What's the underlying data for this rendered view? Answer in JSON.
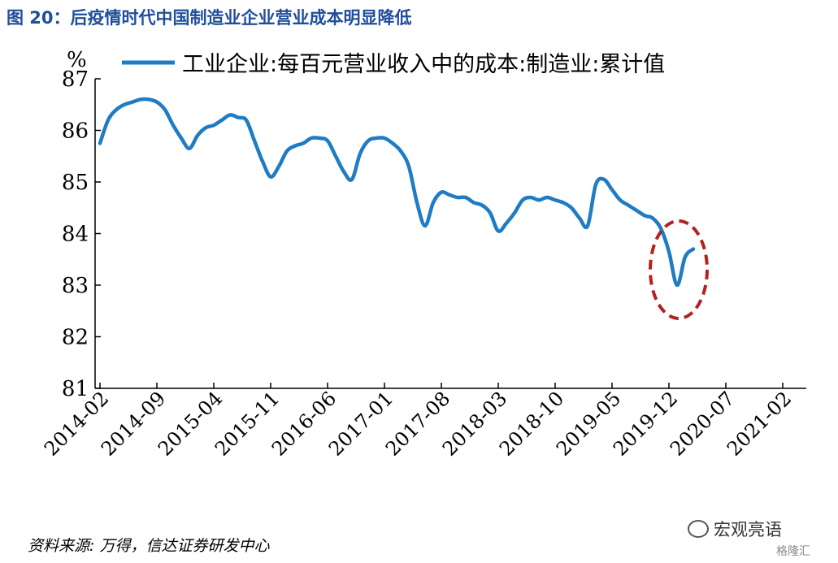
{
  "figure_title": "图  20：后疫情时代中国制造业企业营业成本明显降低",
  "source_note": "资料来源: 万得，信达证券研发中心",
  "watermark": {
    "brand": "宏观亮语",
    "corner": "格隆汇"
  },
  "colors": {
    "series": "#1f7cc4",
    "highlight": "#b22222",
    "title": "#1f4e9c"
  },
  "chart_data": {
    "type": "line",
    "ylabel": "%",
    "ylim": [
      81,
      87
    ],
    "yticks": [
      "81",
      "82",
      "83",
      "84",
      "85",
      "86",
      "87"
    ],
    "xtick_labels": [
      "2014-02",
      "2014-09",
      "2015-04",
      "2015-11",
      "2016-06",
      "2017-01",
      "2017-08",
      "2018-03",
      "2018-10",
      "2019-05",
      "2019-12",
      "2020-07",
      "2021-02"
    ],
    "legend_position": "top",
    "grid": false,
    "series": [
      {
        "name": "工业企业:每百元营业收入中的成本:制造业:累计值",
        "x_start": "2014-02",
        "frequency": "monthly",
        "values": [
          85.75,
          86.2,
          86.4,
          86.5,
          86.55,
          86.6,
          86.6,
          86.55,
          86.4,
          86.1,
          85.85,
          85.65,
          85.9,
          86.05,
          86.1,
          86.2,
          86.3,
          86.25,
          86.2,
          85.8,
          85.4,
          85.1,
          85.3,
          85.6,
          85.7,
          85.75,
          85.85,
          85.85,
          85.8,
          85.5,
          85.2,
          85.05,
          85.55,
          85.8,
          85.85,
          85.85,
          85.75,
          85.6,
          85.3,
          84.6,
          84.15,
          84.6,
          84.8,
          84.75,
          84.7,
          84.7,
          84.6,
          84.55,
          84.4,
          84.05,
          84.2,
          84.4,
          84.65,
          84.7,
          84.65,
          84.7,
          84.65,
          84.6,
          84.5,
          84.3,
          84.15,
          84.95,
          85.05,
          84.85,
          84.65,
          84.55,
          84.45,
          84.35,
          84.3,
          84.1,
          83.65,
          83.0,
          83.55,
          83.7
        ]
      }
    ],
    "annotations": [
      {
        "type": "dashed-ellipse",
        "target": "2021-01 to 2021-04 dip"
      }
    ]
  }
}
